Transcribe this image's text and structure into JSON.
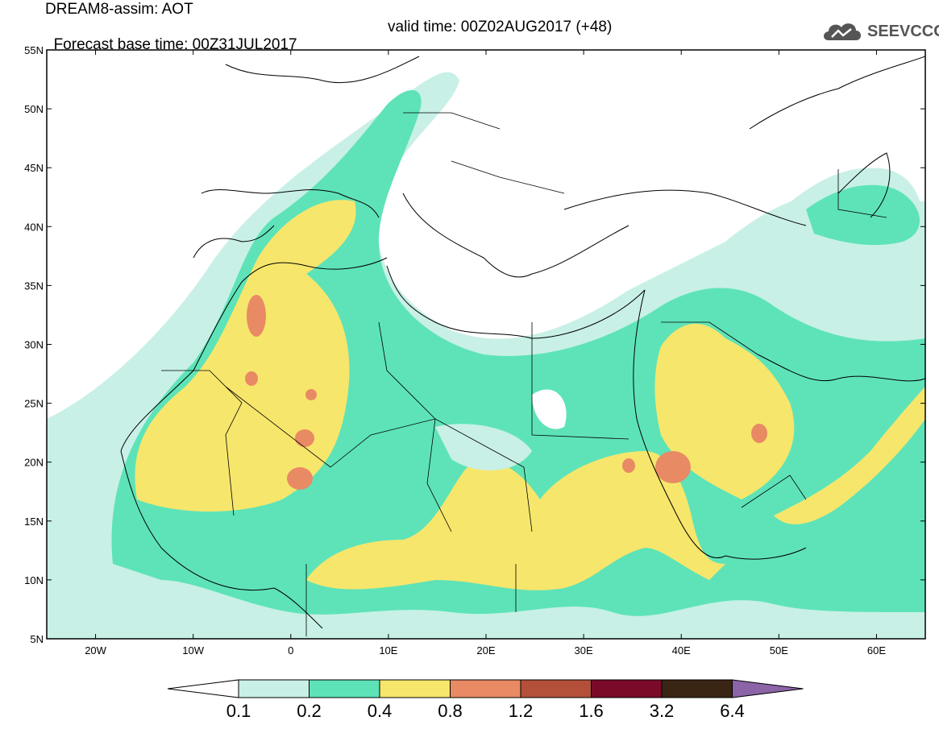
{
  "header": {
    "title": "DREAM8-assim: AOT",
    "base_time": "Forecast base time: 00Z31JUL2017",
    "valid_time": "valid time: 00Z02AUG2017 (+48)",
    "logo_text": "SEEVCCC"
  },
  "map": {
    "lat_labels": [
      "55N",
      "50N",
      "45N",
      "40N",
      "35N",
      "30N",
      "25N",
      "20N",
      "15N",
      "10N",
      "5N"
    ],
    "lon_labels": [
      "20W",
      "10W",
      "0",
      "10E",
      "20E",
      "30E",
      "40E",
      "50E",
      "60E"
    ],
    "extent": {
      "lon": [
        -25,
        65
      ],
      "lat": [
        5,
        55
      ]
    }
  },
  "colorbar": {
    "labels": [
      "0.1",
      "0.2",
      "0.4",
      "0.8",
      "1.2",
      "1.6",
      "3.2",
      "6.4"
    ],
    "colors": [
      "#c8f0e6",
      "#5ee3b8",
      "#f7e66c",
      "#e88a64",
      "#b4503a",
      "#7a0a28",
      "#3a2414",
      "#8c64a8"
    ]
  },
  "colors": {
    "level_0_1": "#c8f0e6",
    "level_0_2": "#5ee3b8",
    "level_0_4": "#f7e66c",
    "level_0_8": "#e88a64",
    "level_1_2": "#b4503a"
  }
}
